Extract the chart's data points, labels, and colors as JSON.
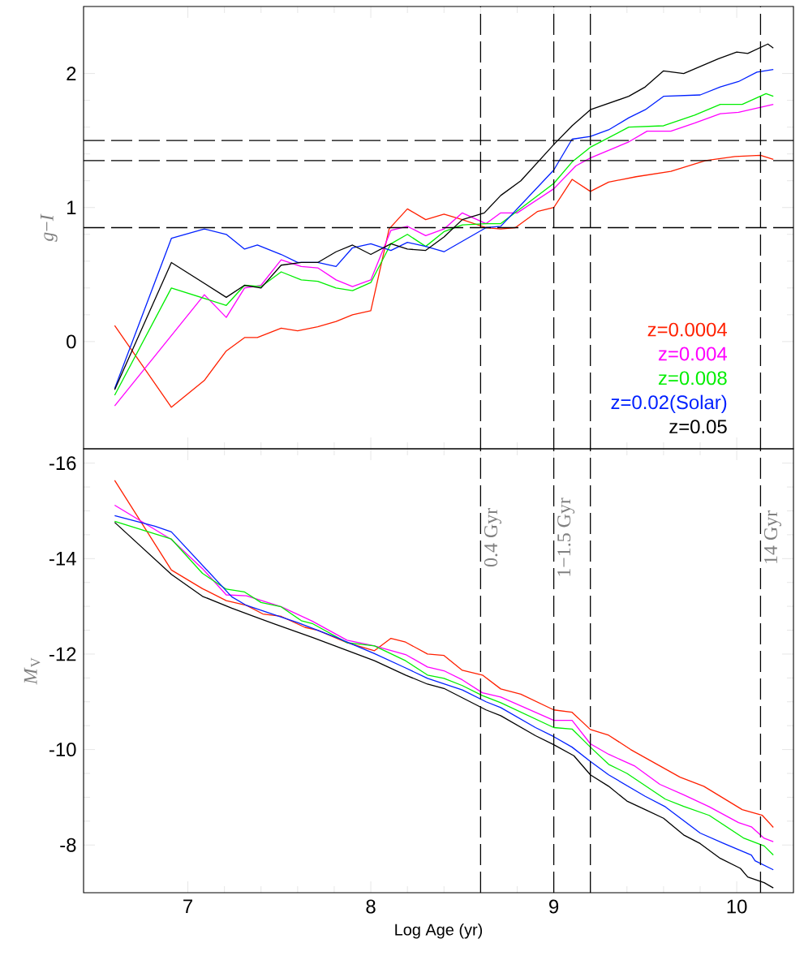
{
  "chart_data": [
    {
      "type": "line",
      "ylabel": "*g*−*I*",
      "xlim": [
        6.43,
        10.31
      ],
      "xticks": [
        7,
        8,
        9,
        10
      ],
      "ylim": [
        -0.8,
        2.5
      ],
      "yticks": [
        0,
        1,
        2
      ],
      "tick_labels": "y",
      "legend": "bottom right",
      "series": [
        {
          "name": "z=0.0004",
          "color": "#ff2000",
          "x": [
            6.6,
            6.91,
            7.09,
            7.21,
            7.31,
            7.38,
            7.51,
            7.6,
            7.71,
            7.81,
            7.9,
            8.0,
            8.1,
            8.2,
            8.3,
            8.4,
            8.5,
            8.63,
            8.71,
            8.79,
            8.91,
            9.0,
            9.1,
            9.2,
            9.3,
            9.45,
            9.64,
            9.83,
            9.99,
            10.13,
            10.2
          ],
          "values": [
            0.12,
            -0.49,
            -0.29,
            -0.07,
            0.03,
            0.03,
            0.1,
            0.08,
            0.11,
            0.15,
            0.2,
            0.23,
            0.84,
            0.99,
            0.91,
            0.95,
            0.91,
            0.85,
            0.84,
            0.85,
            0.97,
            1.0,
            1.21,
            1.12,
            1.19,
            1.23,
            1.27,
            1.35,
            1.38,
            1.39,
            1.36
          ]
        },
        {
          "name": "z=0.004",
          "color": "#ff00ff",
          "x": [
            6.6,
            7.09,
            7.21,
            7.31,
            7.4,
            7.51,
            7.62,
            7.71,
            7.81,
            7.9,
            8.0,
            8.11,
            8.2,
            8.3,
            8.4,
            8.5,
            8.63,
            8.71,
            8.8,
            9.0,
            9.12,
            9.2,
            9.41,
            9.51,
            9.64,
            9.77,
            9.91,
            10.01,
            10.2
          ],
          "values": [
            -0.48,
            0.35,
            0.18,
            0.4,
            0.42,
            0.61,
            0.56,
            0.55,
            0.46,
            0.41,
            0.46,
            0.83,
            0.86,
            0.79,
            0.84,
            0.96,
            0.88,
            0.96,
            0.96,
            1.14,
            1.31,
            1.37,
            1.49,
            1.57,
            1.57,
            1.63,
            1.7,
            1.71,
            1.77
          ]
        },
        {
          "name": "z=0.008",
          "color": "#00ee00",
          "x": [
            6.6,
            6.91,
            7.21,
            7.31,
            7.4,
            7.51,
            7.62,
            7.71,
            7.81,
            7.9,
            8.0,
            8.11,
            8.2,
            8.3,
            8.4,
            8.5,
            8.63,
            8.71,
            9.0,
            9.1,
            9.2,
            9.41,
            9.6,
            9.77,
            9.91,
            10.03,
            10.16,
            10.2
          ],
          "values": [
            -0.4,
            0.4,
            0.27,
            0.42,
            0.41,
            0.52,
            0.46,
            0.45,
            0.4,
            0.38,
            0.44,
            0.73,
            0.8,
            0.71,
            0.82,
            0.87,
            0.88,
            0.88,
            1.18,
            1.34,
            1.45,
            1.6,
            1.61,
            1.69,
            1.77,
            1.77,
            1.85,
            1.83
          ]
        },
        {
          "name": "z=0.02(Solar)",
          "color": "#0020ff",
          "x": [
            6.6,
            6.91,
            7.09,
            7.21,
            7.31,
            7.38,
            7.51,
            7.6,
            7.71,
            7.81,
            7.9,
            8.0,
            8.11,
            8.2,
            8.3,
            8.4,
            8.63,
            8.71,
            9.0,
            9.1,
            9.2,
            9.3,
            9.41,
            9.5,
            9.6,
            9.8,
            9.91,
            10.01,
            10.11,
            10.2
          ],
          "values": [
            -0.35,
            0.77,
            0.84,
            0.8,
            0.69,
            0.72,
            0.65,
            0.59,
            0.59,
            0.56,
            0.7,
            0.73,
            0.68,
            0.74,
            0.71,
            0.67,
            0.85,
            0.86,
            1.28,
            1.51,
            1.53,
            1.58,
            1.67,
            1.73,
            1.83,
            1.84,
            1.9,
            1.94,
            2.01,
            2.03
          ]
        },
        {
          "name": "z=0.05",
          "color": "#000000",
          "x": [
            6.6,
            6.91,
            7.21,
            7.31,
            7.4,
            7.51,
            7.62,
            7.71,
            7.81,
            7.9,
            8.0,
            8.11,
            8.2,
            8.3,
            8.4,
            8.5,
            8.62,
            8.71,
            8.82,
            9.0,
            9.1,
            9.2,
            9.41,
            9.5,
            9.6,
            9.71,
            9.9,
            10.0,
            10.06,
            10.17,
            10.2
          ],
          "values": [
            -0.36,
            0.59,
            0.33,
            0.42,
            0.4,
            0.57,
            0.59,
            0.59,
            0.67,
            0.72,
            0.65,
            0.73,
            0.69,
            0.68,
            0.78,
            0.91,
            0.96,
            1.09,
            1.2,
            1.47,
            1.61,
            1.73,
            1.83,
            1.9,
            2.02,
            2.0,
            2.11,
            2.16,
            2.15,
            2.22,
            2.19
          ]
        }
      ],
      "ref_lines": [
        {
          "axis": "x",
          "value": 8.6,
          "color": "#000000",
          "line_style": "dashed"
        },
        {
          "axis": "x",
          "value": 9.0,
          "color": "#000000",
          "line_style": "dashed"
        },
        {
          "axis": "x",
          "value": 9.2,
          "color": "#000000",
          "line_style": "dashed"
        },
        {
          "axis": "x",
          "value": 10.13,
          "color": "#000000",
          "line_style": "dashed"
        },
        {
          "axis": "y",
          "value": 0.85,
          "color": "#000000",
          "line_style": "dashed"
        },
        {
          "axis": "y",
          "value": 1.35,
          "color": "#000000",
          "line_style": "dashed"
        },
        {
          "axis": "y",
          "value": 1.5,
          "color": "#000000",
          "line_style": "dashed"
        }
      ]
    },
    {
      "type": "line",
      "xlabel": "Log Age (yr)",
      "ylabel": "*M*$_{V}$",
      "xlim": [
        6.43,
        10.31
      ],
      "xticks": [
        7,
        8,
        9,
        10
      ],
      "ylim": [
        -7,
        -16.3
      ],
      "yticks": [
        -16,
        -14,
        -12,
        -10,
        -8
      ],
      "series": [
        {
          "color": "#ff2000",
          "x": [
            6.6,
            6.91,
            7.08,
            7.21,
            7.32,
            7.41,
            7.51,
            7.64,
            7.71,
            7.87,
            8.02,
            8.11,
            8.19,
            8.31,
            8.4,
            8.5,
            8.61,
            8.71,
            8.82,
            9.0,
            9.1,
            9.2,
            9.3,
            9.42,
            9.69,
            9.82,
            10.03,
            10.14,
            10.2
          ],
          "values": [
            -15.64,
            -13.76,
            -13.37,
            -13.12,
            -13.02,
            -12.84,
            -12.79,
            -12.56,
            -12.5,
            -12.24,
            -12.07,
            -12.33,
            -12.25,
            -12.0,
            -11.97,
            -11.66,
            -11.56,
            -11.27,
            -11.16,
            -10.83,
            -10.78,
            -10.42,
            -10.3,
            -10.0,
            -9.42,
            -9.23,
            -8.74,
            -8.62,
            -8.37
          ]
        },
        {
          "color": "#ff00ff",
          "x": [
            6.6,
            6.91,
            7.08,
            7.21,
            7.32,
            7.51,
            7.68,
            7.87,
            8.02,
            8.19,
            8.31,
            8.4,
            8.5,
            8.61,
            8.71,
            9.0,
            9.1,
            9.2,
            9.3,
            9.44,
            9.58,
            9.71,
            9.85,
            10.01,
            10.08,
            10.15,
            10.2
          ],
          "values": [
            -15.12,
            -14.4,
            -13.79,
            -13.24,
            -13.22,
            -12.99,
            -12.69,
            -12.29,
            -12.17,
            -11.99,
            -11.73,
            -11.65,
            -11.46,
            -11.19,
            -11.1,
            -10.61,
            -10.61,
            -10.12,
            -9.9,
            -9.66,
            -9.27,
            -9.05,
            -8.8,
            -8.47,
            -8.38,
            -8.14,
            -8.07
          ]
        },
        {
          "color": "#00ee00",
          "x": [
            6.6,
            6.91,
            7.08,
            7.21,
            7.31,
            7.4,
            7.51,
            7.62,
            7.68,
            7.87,
            8.02,
            8.19,
            8.31,
            8.4,
            8.5,
            8.61,
            8.71,
            9.0,
            9.1,
            9.2,
            9.3,
            9.4,
            9.61,
            9.71,
            9.85,
            10.04,
            10.15,
            10.2
          ],
          "values": [
            -14.78,
            -14.41,
            -13.69,
            -13.36,
            -13.3,
            -13.08,
            -12.99,
            -12.7,
            -12.64,
            -12.24,
            -12.17,
            -11.86,
            -11.56,
            -11.49,
            -11.34,
            -11.13,
            -10.98,
            -10.46,
            -10.43,
            -10.05,
            -9.69,
            -9.5,
            -8.96,
            -8.81,
            -8.62,
            -8.14,
            -7.98,
            -7.79
          ]
        },
        {
          "color": "#0020ff",
          "x": [
            6.6,
            6.82,
            6.91,
            7.24,
            7.32,
            7.6,
            7.81,
            8.02,
            8.19,
            8.31,
            8.5,
            8.63,
            8.71,
            8.9,
            9.0,
            9.1,
            9.2,
            9.3,
            9.5,
            9.61,
            9.8,
            9.93,
            10.08,
            10.1,
            10.2
          ],
          "values": [
            -14.9,
            -14.68,
            -14.56,
            -13.2,
            -13.02,
            -12.66,
            -12.35,
            -12.01,
            -11.71,
            -11.49,
            -11.25,
            -11.0,
            -10.88,
            -10.46,
            -10.27,
            -10.05,
            -9.75,
            -9.47,
            -9.02,
            -8.8,
            -8.25,
            -8.03,
            -7.79,
            -7.67,
            -7.48
          ]
        },
        {
          "color": "#000000",
          "x": [
            6.6,
            6.91,
            7.08,
            7.24,
            7.48,
            7.68,
            8.02,
            8.19,
            8.31,
            8.4,
            8.63,
            8.71,
            8.9,
            9.0,
            9.11,
            9.2,
            9.3,
            9.4,
            9.5,
            9.6,
            9.71,
            9.8,
            9.91,
            10.02,
            10.06,
            10.15,
            10.2
          ],
          "values": [
            -14.76,
            -13.67,
            -13.21,
            -12.96,
            -12.62,
            -12.35,
            -11.86,
            -11.56,
            -11.37,
            -11.28,
            -10.83,
            -10.71,
            -10.29,
            -10.1,
            -9.87,
            -9.47,
            -9.23,
            -8.92,
            -8.74,
            -8.56,
            -8.21,
            -8.03,
            -7.72,
            -7.51,
            -7.33,
            -7.21,
            -7.1
          ]
        }
      ],
      "ref_lines": [
        {
          "axis": "x",
          "value": 8.6,
          "color": "#000000",
          "line_style": "dashed",
          "label": "0.4 Gyr"
        },
        {
          "axis": "x",
          "value": 9.0,
          "color": "#000000",
          "line_style": "dashed",
          "label": "1−1.5 Gyr"
        },
        {
          "axis": "x",
          "value": 9.2,
          "color": "#000000",
          "line_style": "dashed"
        },
        {
          "axis": "x",
          "value": 10.13,
          "color": "#000000",
          "line_style": "dashed",
          "label": "14 Gyr"
        }
      ]
    }
  ]
}
